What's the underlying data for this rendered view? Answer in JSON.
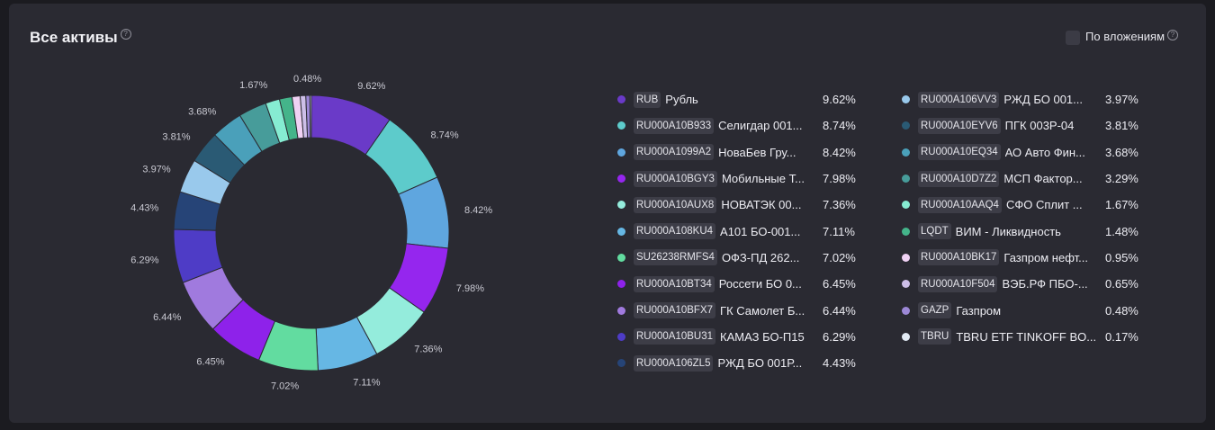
{
  "header": {
    "title": "Все активы",
    "help_icon": "?",
    "toggle_label": "По вложениям",
    "toggle_help_icon": "?"
  },
  "colors": {
    "background": "#2a2a32",
    "ticker_bg": "#3d3d47"
  },
  "chart_data": {
    "type": "pie",
    "title": "Все активы",
    "unit": "%",
    "slices": [
      {
        "ticker": "RUB",
        "name": "Рубль",
        "value": 9.62,
        "label": "9.62%",
        "color": "#6a3ac8"
      },
      {
        "ticker": "RU000A10B933",
        "name": "Селигдар 001...",
        "value": 8.74,
        "label": "8.74%",
        "color": "#5dcbcb"
      },
      {
        "ticker": "RU000A1099A2",
        "name": "НоваБев Гру...",
        "value": 8.42,
        "label": "8.42%",
        "color": "#5fa6df"
      },
      {
        "ticker": "RU000A10BGY3",
        "name": "Мобильные Т...",
        "value": 7.98,
        "label": "7.98%",
        "color": "#9526ee"
      },
      {
        "ticker": "RU000A10AUX8",
        "name": "НОВАТЭК 00...",
        "value": 7.36,
        "label": "7.36%",
        "color": "#94ecdc"
      },
      {
        "ticker": "RU000A108KU4",
        "name": "А101 БО-001...",
        "value": 7.11,
        "label": "7.11%",
        "color": "#66b7e4"
      },
      {
        "ticker": "SU26238RMFS4",
        "name": "ОФЗ-ПД 262...",
        "value": 7.02,
        "label": "7.02%",
        "color": "#62dca0"
      },
      {
        "ticker": "RU000A10BT34",
        "name": "Россети БО 0...",
        "value": 6.45,
        "label": "6.45%",
        "color": "#8e22ea"
      },
      {
        "ticker": "RU000A10BFX7",
        "name": "ГК Самолет Б...",
        "value": 6.44,
        "label": "6.44%",
        "color": "#a07ade"
      },
      {
        "ticker": "RU000A10BU31",
        "name": "КАМАЗ БО-П15",
        "value": 6.29,
        "label": "6.29%",
        "color": "#4e3cc6"
      },
      {
        "ticker": "RU000A106ZL5",
        "name": "РЖД БО 001Р...",
        "value": 4.43,
        "label": "4.43%",
        "color": "#264477"
      },
      {
        "ticker": "RU000A106VV3",
        "name": "РЖД БО 001...",
        "value": 3.97,
        "label": "3.97%",
        "color": "#99c9ec"
      },
      {
        "ticker": "RU000A10EYV6",
        "name": "ПГК 003Р-04",
        "value": 3.81,
        "label": "3.81%",
        "color": "#2a5a74"
      },
      {
        "ticker": "RU000A10EQ34",
        "name": "АО Авто Фин...",
        "value": 3.68,
        "label": "3.68%",
        "color": "#4aa0ba"
      },
      {
        "ticker": "RU000A10D7Z2",
        "name": "МСП Фактор...",
        "value": 3.29,
        "label": "3.29%",
        "color": "#479c9a"
      },
      {
        "ticker": "RU000A10AAQ4",
        "name": "СФО Сплит ...",
        "value": 1.67,
        "label": "1.67%",
        "color": "#86ecd2"
      },
      {
        "ticker": "LQDT",
        "name": "ВИМ - Ликвидность",
        "value": 1.48,
        "label": "1.48%",
        "color": "#44b48a"
      },
      {
        "ticker": "RU000A10BK17",
        "name": "Газпром нефт...",
        "value": 0.95,
        "label": "0.95%",
        "color": "#f0d2f4"
      },
      {
        "ticker": "RU000A10F504",
        "name": "ВЭБ.РФ ПБО-...",
        "value": 0.65,
        "label": "0.65%",
        "color": "#cdbfe8"
      },
      {
        "ticker": "GAZP",
        "name": "Газпром",
        "value": 0.48,
        "label": "0.48%",
        "color": "#9c88d6"
      },
      {
        "ticker": "TBRU",
        "name": "TBRU ETF TINKOFF BO...",
        "value": 0.17,
        "label": "0.17%",
        "color": "#e2eaf4"
      }
    ],
    "shown_labels": [
      0,
      1,
      2,
      3,
      4,
      5,
      6,
      7,
      8,
      9,
      10,
      11,
      12,
      13,
      15,
      19
    ],
    "legend_placement": "right"
  }
}
